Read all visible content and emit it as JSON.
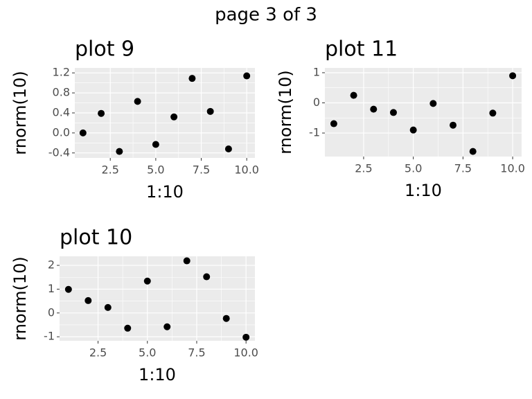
{
  "page_title": "page 3 of 3",
  "chart_data": [
    {
      "type": "scatter",
      "title": "plot 9",
      "xlabel": "1:10",
      "ylabel": "rnorm(10)",
      "color": "#000000",
      "grid": true,
      "x": [
        1,
        2,
        3,
        4,
        5,
        6,
        7,
        8,
        9,
        10
      ],
      "values": [
        0.0,
        0.39,
        -0.37,
        0.63,
        -0.23,
        0.32,
        1.09,
        0.43,
        -0.32,
        1.14
      ],
      "xlim": [
        0.55,
        10.45
      ],
      "ylim": [
        -0.5,
        1.3
      ],
      "xticks": [
        2.5,
        {
          "value": 5,
          "label": "5.0"
        },
        7.5,
        {
          "value": 10,
          "label": "10.0"
        }
      ],
      "yticks": [
        -0.4,
        {
          "value": 0,
          "label": "0.0"
        },
        0.4,
        0.8,
        1.2
      ]
    },
    {
      "type": "scatter",
      "title": "plot 11",
      "xlabel": "1:10",
      "ylabel": "rnorm(10)",
      "color": "#000000",
      "grid": true,
      "x": [
        1,
        2,
        3,
        4,
        5,
        6,
        7,
        8,
        9,
        10
      ],
      "values": [
        -0.69,
        0.25,
        -0.21,
        -0.32,
        -0.9,
        -0.02,
        -0.74,
        -1.61,
        -0.34,
        0.9
      ],
      "xlim": [
        0.55,
        10.45
      ],
      "ylim": [
        -1.78,
        1.16
      ],
      "xticks": [
        2.5,
        {
          "value": 5,
          "label": "5.0"
        },
        7.5,
        {
          "value": 10,
          "label": "10.0"
        }
      ],
      "yticks": [
        -1,
        0,
        1
      ]
    },
    {
      "type": "scatter",
      "title": "plot 10",
      "xlabel": "1:10",
      "ylabel": "rnorm(10)",
      "color": "#000000",
      "grid": true,
      "x": [
        1,
        2,
        3,
        4,
        5,
        6,
        7,
        8,
        9,
        10
      ],
      "values": [
        0.99,
        0.52,
        0.23,
        -0.64,
        1.34,
        -0.58,
        2.19,
        1.52,
        -0.23,
        -1.02
      ],
      "xlim": [
        0.55,
        10.45
      ],
      "ylim": [
        -1.17,
        2.38
      ],
      "xticks": [
        2.5,
        {
          "value": 5,
          "label": "5.0"
        },
        7.5,
        {
          "value": 10,
          "label": "10.0"
        }
      ],
      "yticks": [
        -1,
        0,
        1,
        2
      ]
    }
  ]
}
